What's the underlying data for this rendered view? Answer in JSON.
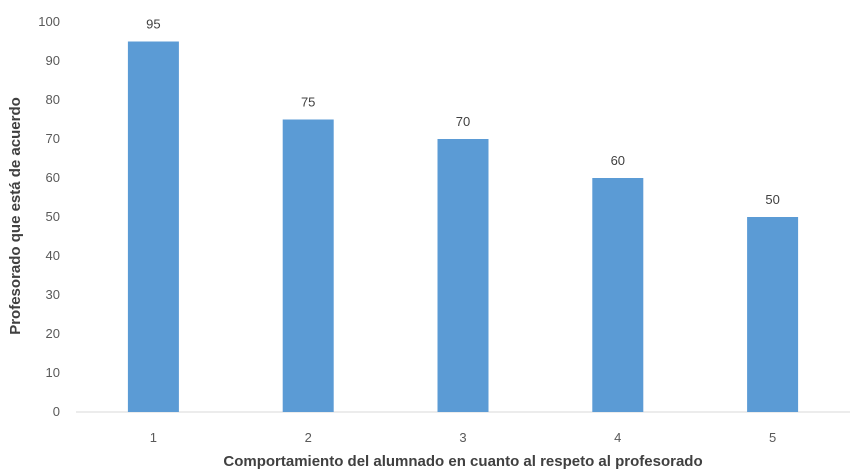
{
  "chart_data": {
    "type": "bar",
    "categories": [
      "1",
      "2",
      "3",
      "4",
      "5"
    ],
    "values": [
      95,
      75,
      70,
      60,
      50
    ],
    "xlabel": "Comportamiento del alumnado en cuanto al respeto al profesorado",
    "ylabel": "Profesorado que está de acuerdo",
    "ylim": [
      0,
      100
    ],
    "yticks": [
      0,
      10,
      20,
      30,
      40,
      50,
      60,
      70,
      80,
      90,
      100
    ],
    "data_labels": true,
    "grid": false,
    "legend": "none",
    "colors": {
      "bar": "#5b9bd5",
      "axis": "#d9d9d9",
      "text": "#595959"
    }
  }
}
